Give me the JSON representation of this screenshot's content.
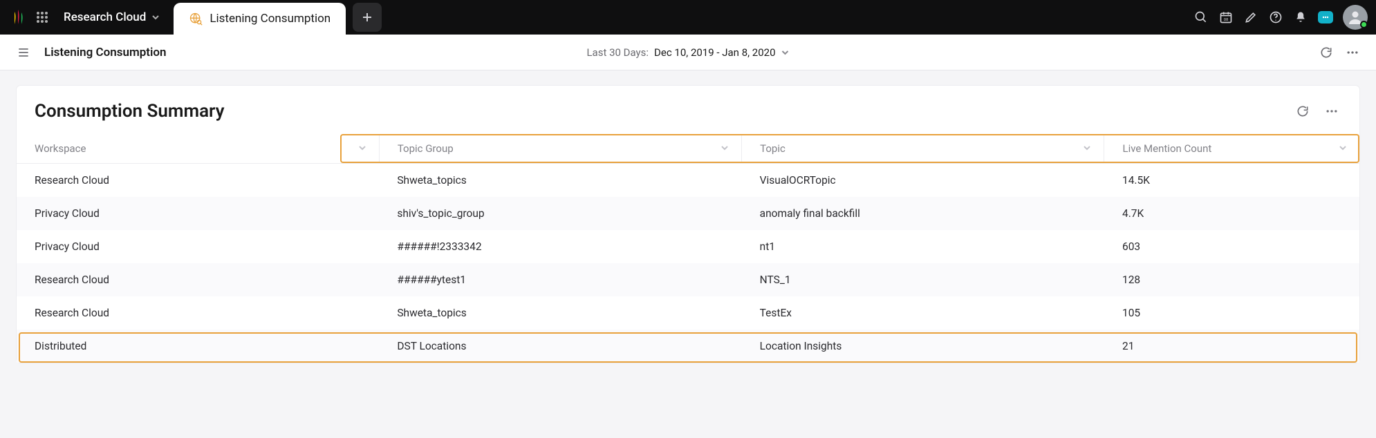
{
  "topbar": {
    "workspace_label": "Research Cloud",
    "active_tab_label": "Listening Consumption"
  },
  "subheader": {
    "page_title": "Listening Consumption",
    "date_prefix": "Last 30 Days:",
    "date_range": "Dec 10, 2019 - Jan 8, 2020"
  },
  "card": {
    "title": "Consumption Summary",
    "columns": {
      "workspace": "Workspace",
      "topic_group": "Topic Group",
      "topic": "Topic",
      "live_mention_count": "Live Mention Count"
    },
    "rows": [
      {
        "workspace": "Research Cloud",
        "topic_group": "Shweta_topics",
        "topic": "VisualOCRTopic",
        "count": "14.5K"
      },
      {
        "workspace": "Privacy Cloud",
        "topic_group": "shiv's_topic_group",
        "topic": "anomaly final backfill",
        "count": "4.7K"
      },
      {
        "workspace": "Privacy Cloud",
        "topic_group": "######!2333342",
        "topic": "nt1",
        "count": "603"
      },
      {
        "workspace": "Research Cloud",
        "topic_group": "######ytest1",
        "topic": "NTS_1",
        "count": "128"
      },
      {
        "workspace": "Research Cloud",
        "topic_group": "Shweta_topics",
        "topic": "TestEx",
        "count": "105"
      },
      {
        "workspace": "Distributed",
        "topic_group": "DST Locations",
        "topic": "Location Insights",
        "count": "21"
      }
    ]
  },
  "colors": {
    "topbar_bg": "#0f0f10",
    "page_bg": "#f5f5f7",
    "card_bg": "#ffffff",
    "accent_orange": "#e8a13b",
    "text_primary": "#1a1a1a",
    "text_muted": "#828288",
    "row_alt_bg": "#fafafc",
    "chat_bg": "#12b1c9",
    "presence_green": "#3ddc55"
  }
}
